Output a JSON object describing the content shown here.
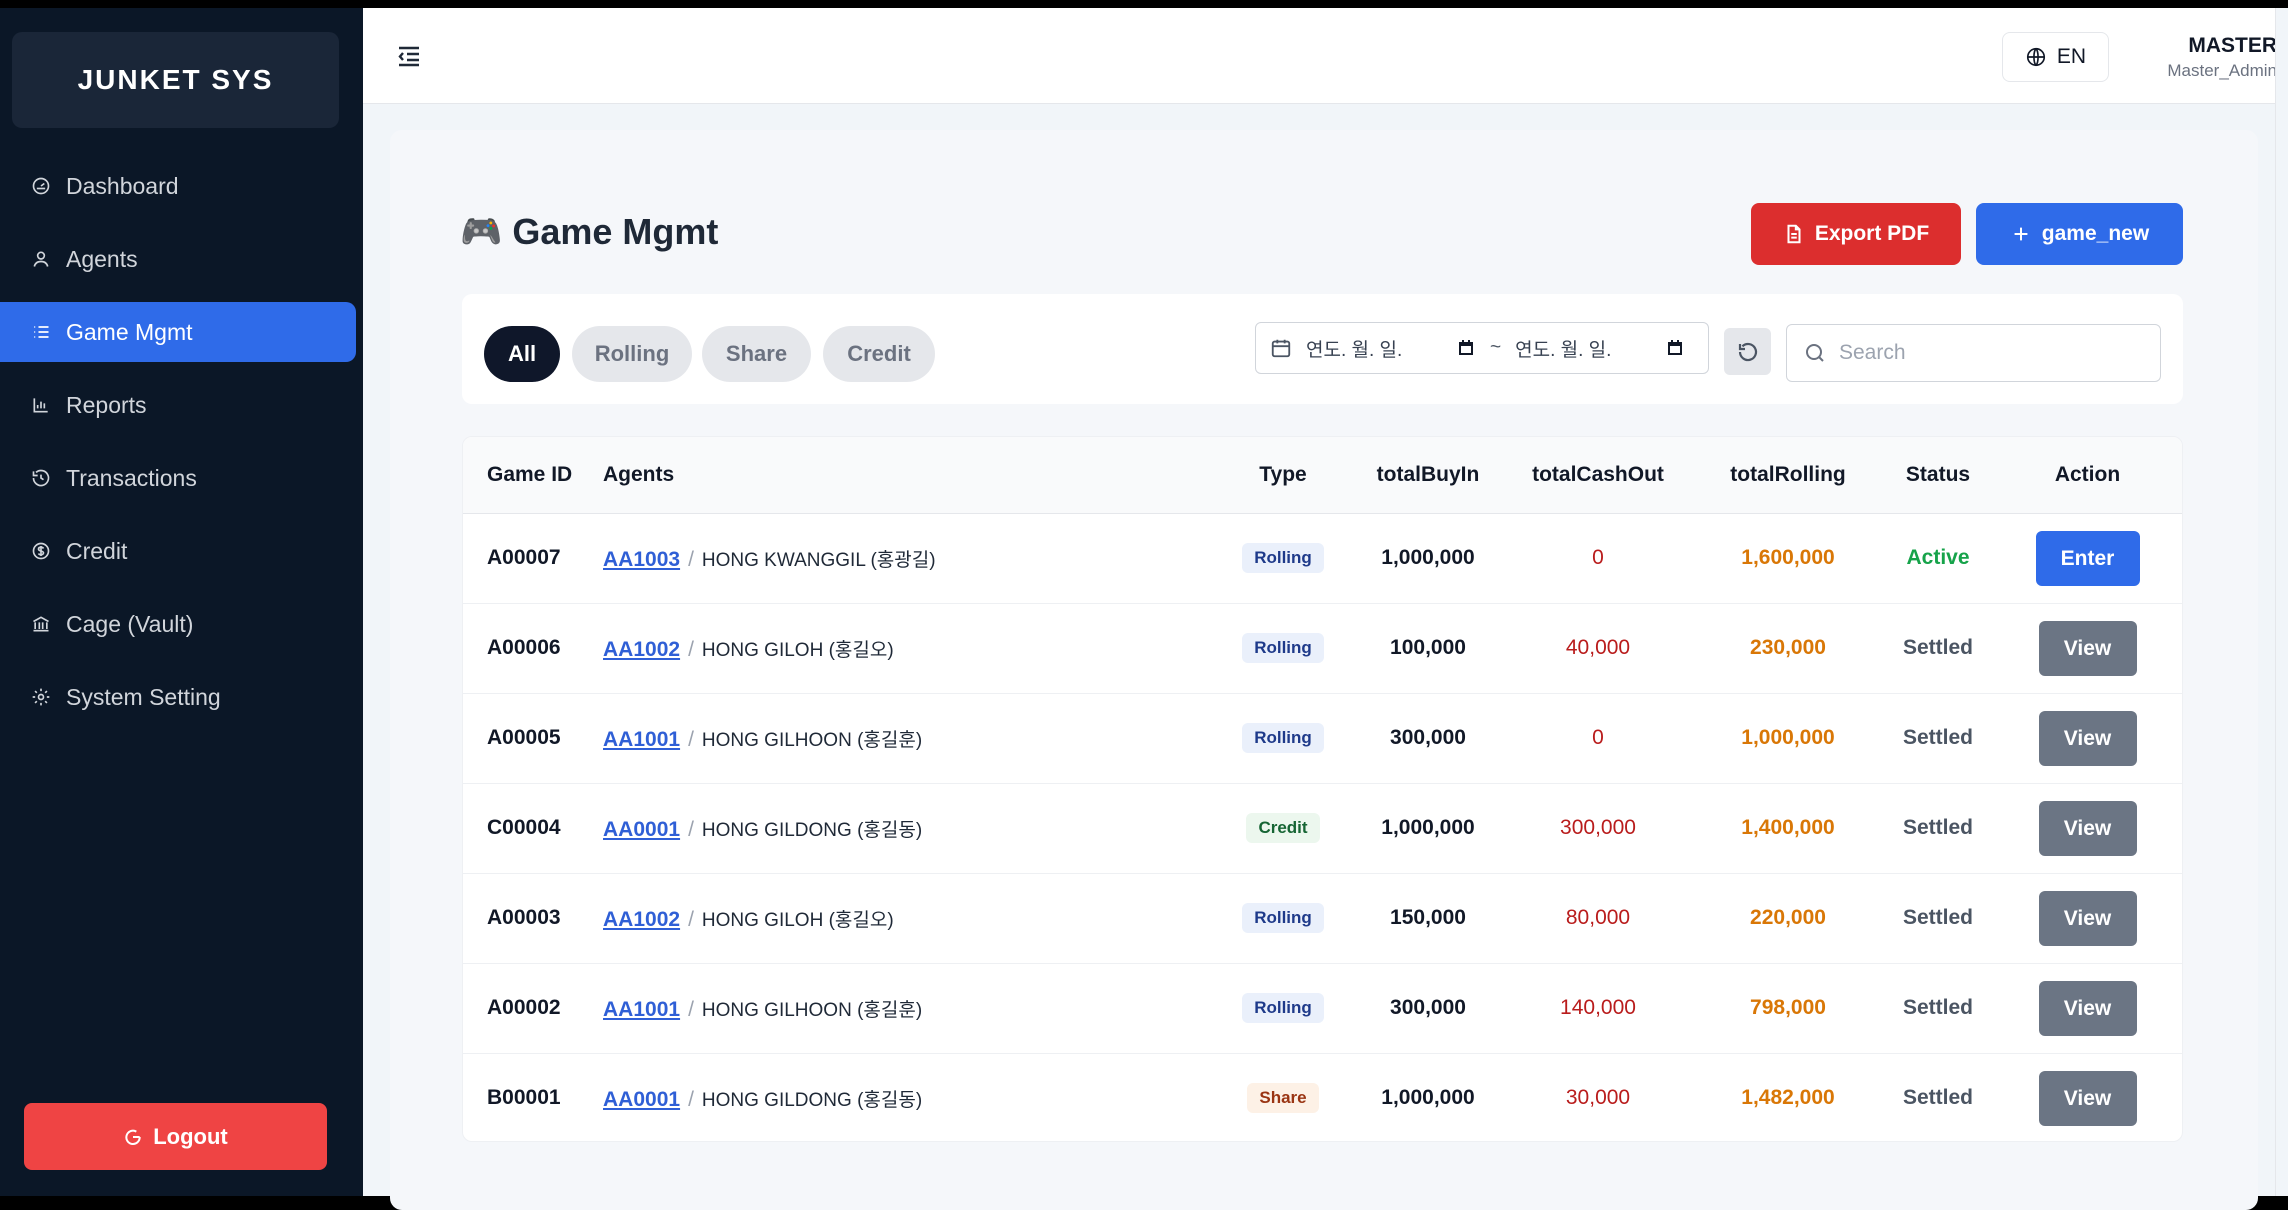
{
  "brand": "JUNKET SYS",
  "sidebar": {
    "items": [
      {
        "label": "Dashboard",
        "icon": "gauge-icon",
        "active": false
      },
      {
        "label": "Agents",
        "icon": "user-icon",
        "active": false
      },
      {
        "label": "Game Mgmt",
        "icon": "list-icon",
        "active": true
      },
      {
        "label": "Reports",
        "icon": "bar-chart-icon",
        "active": false
      },
      {
        "label": "Transactions",
        "icon": "history-icon",
        "active": false
      },
      {
        "label": "Credit",
        "icon": "dollar-circle-icon",
        "active": false
      },
      {
        "label": "Cage (Vault)",
        "icon": "bank-icon",
        "active": false
      },
      {
        "label": "System Setting",
        "icon": "gear-icon",
        "active": false
      }
    ],
    "logout_label": "Logout"
  },
  "topbar": {
    "language": "EN",
    "user_name": "MASTER",
    "user_role": "Master_Admin"
  },
  "page": {
    "title_emoji": "🎮",
    "title": "Game Mgmt",
    "export_label": "Export PDF",
    "new_label": "game_new"
  },
  "filters": {
    "tabs": [
      {
        "label": "All",
        "active": true
      },
      {
        "label": "Rolling",
        "active": false
      },
      {
        "label": "Share",
        "active": false
      },
      {
        "label": "Credit",
        "active": false
      }
    ],
    "date_from_placeholder": "연도. 월. 일.",
    "date_separator": "~",
    "date_to_placeholder": "연도. 월. 일.",
    "search_placeholder": "Search"
  },
  "table": {
    "columns": [
      "Game ID",
      "Agents",
      "Type",
      "totalBuyIn",
      "totalCashOut",
      "totalRolling",
      "Status",
      "Action"
    ],
    "rows": [
      {
        "id": "A00007",
        "agent_code": "AA1003",
        "agent_name": "HONG KWANGGIL (홍광길)",
        "type": "Rolling",
        "buyin": "1,000,000",
        "cashout": "0",
        "rolling": "1,600,000",
        "status": "Active",
        "action": "Enter"
      },
      {
        "id": "A00006",
        "agent_code": "AA1002",
        "agent_name": "HONG GILOH (홍길오)",
        "type": "Rolling",
        "buyin": "100,000",
        "cashout": "40,000",
        "rolling": "230,000",
        "status": "Settled",
        "action": "View"
      },
      {
        "id": "A00005",
        "agent_code": "AA1001",
        "agent_name": "HONG GILHOON (홍길훈)",
        "type": "Rolling",
        "buyin": "300,000",
        "cashout": "0",
        "rolling": "1,000,000",
        "status": "Settled",
        "action": "View"
      },
      {
        "id": "C00004",
        "agent_code": "AA0001",
        "agent_name": "HONG GILDONG (홍길동)",
        "type": "Credit",
        "buyin": "1,000,000",
        "cashout": "300,000",
        "rolling": "1,400,000",
        "status": "Settled",
        "action": "View"
      },
      {
        "id": "A00003",
        "agent_code": "AA1002",
        "agent_name": "HONG GILOH (홍길오)",
        "type": "Rolling",
        "buyin": "150,000",
        "cashout": "80,000",
        "rolling": "220,000",
        "status": "Settled",
        "action": "View"
      },
      {
        "id": "A00002",
        "agent_code": "AA1001",
        "agent_name": "HONG GILHOON (홍길훈)",
        "type": "Rolling",
        "buyin": "300,000",
        "cashout": "140,000",
        "rolling": "798,000",
        "status": "Settled",
        "action": "View"
      },
      {
        "id": "B00001",
        "agent_code": "AA0001",
        "agent_name": "HONG GILDONG (홍길동)",
        "type": "Share",
        "buyin": "1,000,000",
        "cashout": "30,000",
        "rolling": "1,482,000",
        "status": "Settled",
        "action": "View"
      }
    ]
  },
  "colors": {
    "sidebar_bg": "#0b1727",
    "accent": "#2f6be9",
    "danger": "#dc2e2e",
    "active_status": "#16a34a",
    "rolling_amount": "#d97706"
  }
}
